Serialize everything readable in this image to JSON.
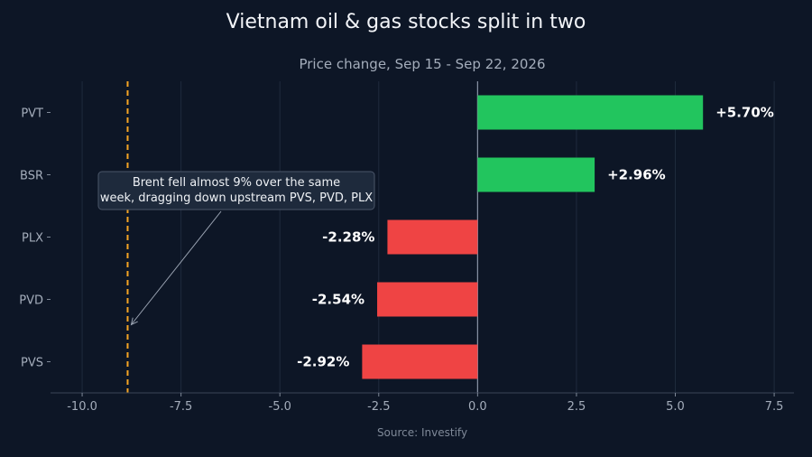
{
  "chart_data": {
    "type": "bar",
    "orientation": "horizontal",
    "title": "Vietnam oil & gas stocks split in two",
    "subtitle": "Price change, Sep 15 - Sep 22, 2026",
    "categories": [
      "PVT",
      "BSR",
      "PLX",
      "PVD",
      "PVS"
    ],
    "values": [
      5.7,
      2.96,
      -2.28,
      -2.54,
      -2.92
    ],
    "data_labels": [
      "+5.70%",
      "+2.96%",
      "-2.28%",
      "-2.54%",
      "-2.92%"
    ],
    "xlim": [
      -10.8,
      8.0
    ],
    "xticks": [
      -10.0,
      -7.5,
      -5.0,
      -2.5,
      0.0,
      2.5,
      5.0,
      7.5
    ],
    "xtick_labels": [
      "-10.0",
      "-7.5",
      "-5.0",
      "-2.5",
      "0.0",
      "2.5",
      "5.0",
      "7.5"
    ],
    "reference_line": {
      "value": -8.85,
      "style": "dashed"
    },
    "annotation": {
      "lines": [
        "Brent fell almost 9% over the same",
        "week, dragging down upstream PVS, PVD, PLX"
      ],
      "arrow_target": {
        "x": -8.85,
        "category": "PVD"
      }
    },
    "grid": true,
    "legend": "none",
    "source": "Source: Investify",
    "colors": {
      "positive": "#22c55e",
      "negative": "#ef4444",
      "reference_line": "#f5a524",
      "zero_line": "#8a93a6",
      "grid": "#1f2a3d",
      "background": "#0d1626"
    }
  }
}
